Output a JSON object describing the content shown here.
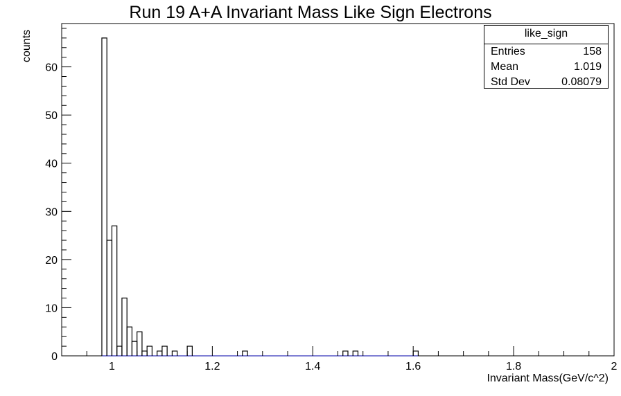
{
  "chart_data": {
    "type": "bar",
    "title": "Run 19 A+A Invariant Mass Like Sign Electrons",
    "xlabel": "Invariant Mass(GeV/c^2)",
    "ylabel": "counts",
    "xlim": [
      0.9,
      2.0
    ],
    "ylim": [
      0,
      69
    ],
    "x_ticks": [
      "1",
      "1.2",
      "1.4",
      "1.6",
      "1.8",
      "2"
    ],
    "y_ticks": [
      "0",
      "10",
      "20",
      "30",
      "40",
      "50",
      "60"
    ],
    "bin_width": 0.01,
    "bins": [
      {
        "x0": 0.98,
        "value": 66
      },
      {
        "x0": 0.99,
        "value": 24
      },
      {
        "x0": 1.0,
        "value": 27
      },
      {
        "x0": 1.01,
        "value": 2
      },
      {
        "x0": 1.02,
        "value": 12
      },
      {
        "x0": 1.03,
        "value": 6
      },
      {
        "x0": 1.04,
        "value": 3
      },
      {
        "x0": 1.05,
        "value": 5
      },
      {
        "x0": 1.06,
        "value": 1
      },
      {
        "x0": 1.07,
        "value": 2
      },
      {
        "x0": 1.09,
        "value": 1
      },
      {
        "x0": 1.1,
        "value": 2
      },
      {
        "x0": 1.12,
        "value": 1
      },
      {
        "x0": 1.15,
        "value": 2
      },
      {
        "x0": 1.26,
        "value": 1
      },
      {
        "x0": 1.46,
        "value": 1
      },
      {
        "x0": 1.48,
        "value": 1
      },
      {
        "x0": 1.6,
        "value": 1
      }
    ],
    "legend": "none",
    "grid": false
  },
  "stats_box": {
    "name": "like_sign",
    "rows": [
      {
        "label": "Entries",
        "value": "158"
      },
      {
        "label": "Mean",
        "value": "1.019"
      },
      {
        "label": "Std Dev",
        "value": "0.08079"
      }
    ]
  },
  "colors": {
    "line": "#000000",
    "baseline": "#0000aa"
  }
}
